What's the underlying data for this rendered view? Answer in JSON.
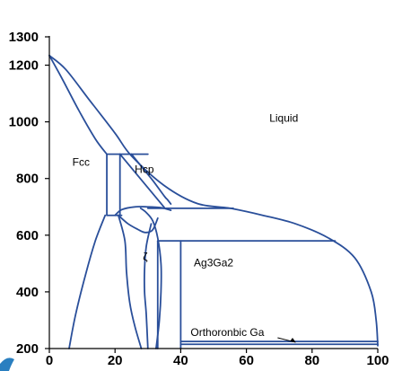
{
  "chart_data": {
    "type": "line",
    "title": "",
    "xlabel": "",
    "ylabel": "",
    "xlim": [
      0,
      100
    ],
    "ylim": [
      200,
      1300
    ],
    "x_ticks": [
      0,
      20,
      40,
      60,
      80,
      100
    ],
    "y_ticks": [
      200,
      400,
      600,
      800,
      1000,
      1200,
      1300
    ],
    "grid": false,
    "line_color": "#2a4f9a",
    "region_labels": [
      {
        "text": "Liquid",
        "x": 67,
        "y": 1000
      },
      {
        "text": "Fcc",
        "x": 7,
        "y": 845
      },
      {
        "text": "Hcp",
        "x": 26,
        "y": 820
      },
      {
        "text": "ζ",
        "x": 28.5,
        "y": 510
      },
      {
        "text": "Ag3Ga2",
        "x": 44,
        "y": 490
      },
      {
        "text": "Orthoronbic Ga",
        "x": 43,
        "y": 245
      }
    ],
    "phase_boundaries": [
      {
        "name": "liquidus",
        "points": [
          [
            0,
            1234
          ],
          [
            5,
            1185
          ],
          [
            12,
            1080
          ],
          [
            20,
            960
          ],
          [
            25,
            880
          ],
          [
            35,
            775
          ],
          [
            45,
            712
          ],
          [
            55,
            695
          ],
          [
            65,
            670
          ],
          [
            75,
            640
          ],
          [
            85,
            590
          ],
          [
            93,
            520
          ],
          [
            98,
            400
          ],
          [
            99.5,
            300
          ],
          [
            100,
            210
          ]
        ]
      },
      {
        "name": "solidus-fcc-upper",
        "points": [
          [
            0,
            1234
          ],
          [
            4,
            1150
          ],
          [
            9,
            1040
          ],
          [
            14,
            940
          ],
          [
            17.5,
            886
          ]
        ]
      },
      {
        "name": "solidus-lower",
        "points": [
          [
            25,
            886
          ],
          [
            28,
            843
          ],
          [
            31.5,
            793
          ],
          [
            35,
            738
          ],
          [
            36,
            725
          ],
          [
            37,
            710
          ]
        ]
      },
      {
        "name": "peritectic-886",
        "points": [
          [
            17.5,
            886
          ],
          [
            30,
            886
          ]
        ]
      },
      {
        "name": "fcc-hcp-boundary",
        "points": [
          [
            17.5,
            886
          ],
          [
            17.5,
            670
          ]
        ]
      },
      {
        "name": "hcp-left",
        "points": [
          [
            21.5,
            886
          ],
          [
            21.5,
            670
          ]
        ]
      },
      {
        "name": "hcp-right",
        "points": [
          [
            21.5,
            886
          ],
          [
            35,
            698
          ]
        ]
      },
      {
        "name": "tie-670",
        "points": [
          [
            17.5,
            670
          ],
          [
            22,
            670
          ]
        ]
      },
      {
        "name": "hcp-bottom",
        "points": [
          [
            20,
            670
          ],
          [
            22,
            690
          ],
          [
            26,
            700
          ],
          [
            30,
            700
          ],
          [
            34,
            697
          ],
          [
            37,
            688
          ]
        ]
      },
      {
        "name": "tie-695",
        "points": [
          [
            30,
            695
          ],
          [
            56,
            695
          ]
        ]
      },
      {
        "name": "fcc-solvus",
        "points": [
          [
            6,
            200
          ],
          [
            8,
            320
          ],
          [
            11,
            460
          ],
          [
            14,
            580
          ],
          [
            17,
            670
          ]
        ]
      },
      {
        "name": "zeta-left",
        "points": [
          [
            21,
            670
          ],
          [
            23,
            580
          ],
          [
            23.5,
            470
          ],
          [
            24.5,
            360
          ],
          [
            26,
            280
          ],
          [
            28,
            200
          ]
        ]
      },
      {
        "name": "zeta-outer",
        "points": [
          [
            21,
            670
          ],
          [
            24,
            640
          ],
          [
            27,
            620
          ],
          [
            29,
            610
          ],
          [
            31,
            614
          ],
          [
            32,
            630
          ],
          [
            33,
            660
          ]
        ]
      },
      {
        "name": "zeta-right",
        "points": [
          [
            27.8,
            695
          ],
          [
            29.5,
            680
          ],
          [
            31.5,
            650
          ],
          [
            33,
            590
          ],
          [
            34,
            500
          ],
          [
            34,
            400
          ],
          [
            33.5,
            300
          ],
          [
            32.5,
            200
          ]
        ]
      },
      {
        "name": "zeta-inner",
        "points": [
          [
            31,
            640
          ],
          [
            29.5,
            560
          ],
          [
            29,
            480
          ],
          [
            29,
            400
          ],
          [
            29.5,
            320
          ],
          [
            30,
            200
          ]
        ]
      },
      {
        "name": "ag3ga2-left",
        "points": [
          [
            33,
            580
          ],
          [
            33,
            200
          ]
        ]
      },
      {
        "name": "ag3ga2-right",
        "points": [
          [
            40,
            580
          ],
          [
            40,
            200
          ]
        ]
      },
      {
        "name": "tie-580",
        "points": [
          [
            33,
            580
          ],
          [
            87,
            580
          ]
        ]
      },
      {
        "name": "tie-225",
        "points": [
          [
            40,
            225
          ],
          [
            100,
            225
          ]
        ]
      },
      {
        "name": "tie-215",
        "points": [
          [
            40,
            215
          ],
          [
            100,
            215
          ]
        ]
      }
    ]
  }
}
